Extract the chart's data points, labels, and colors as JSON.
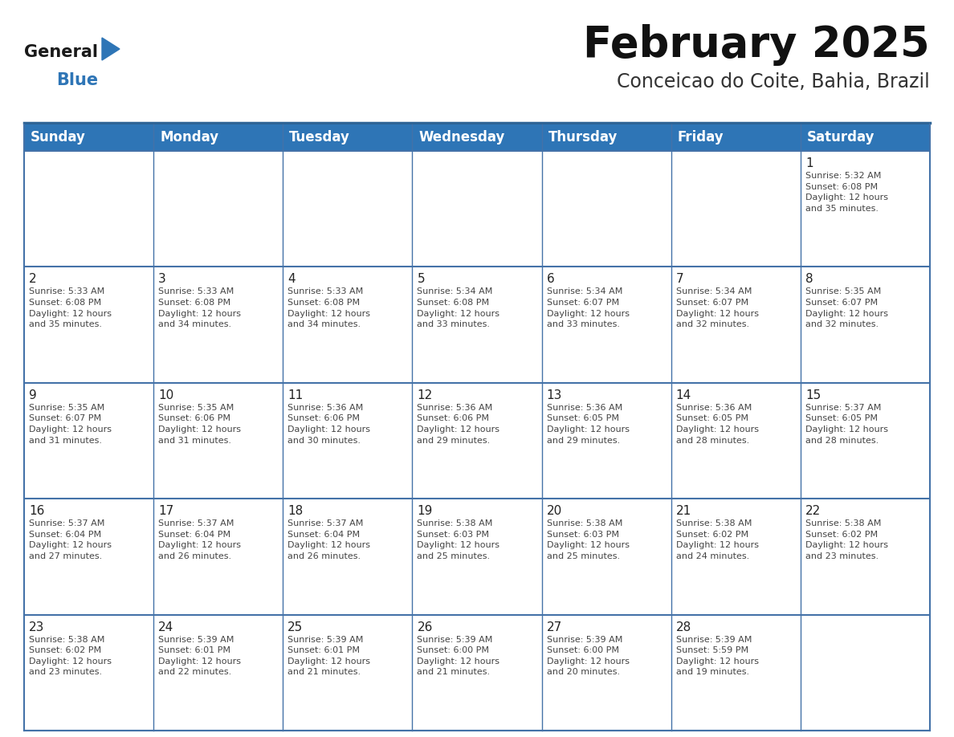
{
  "title": "February 2025",
  "subtitle": "Conceicao do Coite, Bahia, Brazil",
  "header_bg": "#2E75B6",
  "header_text_color": "#FFFFFF",
  "cell_bg_light": "#F2F2F2",
  "cell_bg_white": "#FFFFFF",
  "border_color": "#2E6496",
  "row_border_color": "#4472A8",
  "day_names": [
    "Sunday",
    "Monday",
    "Tuesday",
    "Wednesday",
    "Thursday",
    "Friday",
    "Saturday"
  ],
  "title_fontsize": 38,
  "subtitle_fontsize": 17,
  "header_fontsize": 12,
  "day_num_fontsize": 11,
  "cell_text_fontsize": 8,
  "logo_text_general": "General",
  "logo_text_blue": "Blue",
  "logo_color_general": "#1a1a1a",
  "logo_color_blue": "#2E75B6",
  "fig_width": 11.88,
  "fig_height": 9.18,
  "calendar_data": [
    [
      {
        "day": null,
        "info": null
      },
      {
        "day": null,
        "info": null
      },
      {
        "day": null,
        "info": null
      },
      {
        "day": null,
        "info": null
      },
      {
        "day": null,
        "info": null
      },
      {
        "day": null,
        "info": null
      },
      {
        "day": 1,
        "info": "Sunrise: 5:32 AM\nSunset: 6:08 PM\nDaylight: 12 hours\nand 35 minutes."
      }
    ],
    [
      {
        "day": 2,
        "info": "Sunrise: 5:33 AM\nSunset: 6:08 PM\nDaylight: 12 hours\nand 35 minutes."
      },
      {
        "day": 3,
        "info": "Sunrise: 5:33 AM\nSunset: 6:08 PM\nDaylight: 12 hours\nand 34 minutes."
      },
      {
        "day": 4,
        "info": "Sunrise: 5:33 AM\nSunset: 6:08 PM\nDaylight: 12 hours\nand 34 minutes."
      },
      {
        "day": 5,
        "info": "Sunrise: 5:34 AM\nSunset: 6:08 PM\nDaylight: 12 hours\nand 33 minutes."
      },
      {
        "day": 6,
        "info": "Sunrise: 5:34 AM\nSunset: 6:07 PM\nDaylight: 12 hours\nand 33 minutes."
      },
      {
        "day": 7,
        "info": "Sunrise: 5:34 AM\nSunset: 6:07 PM\nDaylight: 12 hours\nand 32 minutes."
      },
      {
        "day": 8,
        "info": "Sunrise: 5:35 AM\nSunset: 6:07 PM\nDaylight: 12 hours\nand 32 minutes."
      }
    ],
    [
      {
        "day": 9,
        "info": "Sunrise: 5:35 AM\nSunset: 6:07 PM\nDaylight: 12 hours\nand 31 minutes."
      },
      {
        "day": 10,
        "info": "Sunrise: 5:35 AM\nSunset: 6:06 PM\nDaylight: 12 hours\nand 31 minutes."
      },
      {
        "day": 11,
        "info": "Sunrise: 5:36 AM\nSunset: 6:06 PM\nDaylight: 12 hours\nand 30 minutes."
      },
      {
        "day": 12,
        "info": "Sunrise: 5:36 AM\nSunset: 6:06 PM\nDaylight: 12 hours\nand 29 minutes."
      },
      {
        "day": 13,
        "info": "Sunrise: 5:36 AM\nSunset: 6:05 PM\nDaylight: 12 hours\nand 29 minutes."
      },
      {
        "day": 14,
        "info": "Sunrise: 5:36 AM\nSunset: 6:05 PM\nDaylight: 12 hours\nand 28 minutes."
      },
      {
        "day": 15,
        "info": "Sunrise: 5:37 AM\nSunset: 6:05 PM\nDaylight: 12 hours\nand 28 minutes."
      }
    ],
    [
      {
        "day": 16,
        "info": "Sunrise: 5:37 AM\nSunset: 6:04 PM\nDaylight: 12 hours\nand 27 minutes."
      },
      {
        "day": 17,
        "info": "Sunrise: 5:37 AM\nSunset: 6:04 PM\nDaylight: 12 hours\nand 26 minutes."
      },
      {
        "day": 18,
        "info": "Sunrise: 5:37 AM\nSunset: 6:04 PM\nDaylight: 12 hours\nand 26 minutes."
      },
      {
        "day": 19,
        "info": "Sunrise: 5:38 AM\nSunset: 6:03 PM\nDaylight: 12 hours\nand 25 minutes."
      },
      {
        "day": 20,
        "info": "Sunrise: 5:38 AM\nSunset: 6:03 PM\nDaylight: 12 hours\nand 25 minutes."
      },
      {
        "day": 21,
        "info": "Sunrise: 5:38 AM\nSunset: 6:02 PM\nDaylight: 12 hours\nand 24 minutes."
      },
      {
        "day": 22,
        "info": "Sunrise: 5:38 AM\nSunset: 6:02 PM\nDaylight: 12 hours\nand 23 minutes."
      }
    ],
    [
      {
        "day": 23,
        "info": "Sunrise: 5:38 AM\nSunset: 6:02 PM\nDaylight: 12 hours\nand 23 minutes."
      },
      {
        "day": 24,
        "info": "Sunrise: 5:39 AM\nSunset: 6:01 PM\nDaylight: 12 hours\nand 22 minutes."
      },
      {
        "day": 25,
        "info": "Sunrise: 5:39 AM\nSunset: 6:01 PM\nDaylight: 12 hours\nand 21 minutes."
      },
      {
        "day": 26,
        "info": "Sunrise: 5:39 AM\nSunset: 6:00 PM\nDaylight: 12 hours\nand 21 minutes."
      },
      {
        "day": 27,
        "info": "Sunrise: 5:39 AM\nSunset: 6:00 PM\nDaylight: 12 hours\nand 20 minutes."
      },
      {
        "day": 28,
        "info": "Sunrise: 5:39 AM\nSunset: 5:59 PM\nDaylight: 12 hours\nand 19 minutes."
      },
      {
        "day": null,
        "info": null
      }
    ]
  ]
}
